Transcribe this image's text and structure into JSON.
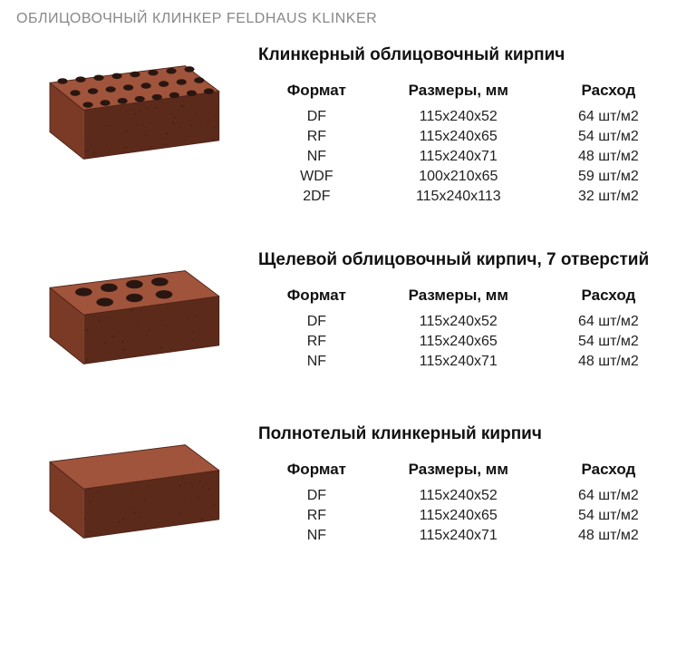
{
  "page_title": "ОБЛИЦОВОЧНЫЙ КЛИНКЕР FELDHAUS KLINKER",
  "table_headers": {
    "format": "Формат",
    "dimensions": "Размеры, мм",
    "consumption": "Расход"
  },
  "brick_visual": {
    "top_face": "#a0543c",
    "side_face": "#5c2a1b",
    "front_face": "#7a3a26",
    "hole_fill": "#2a1610",
    "shadow": "#4d2418",
    "speckle": "#3a2015"
  },
  "sections": [
    {
      "title": "Клинкерный облицовочный кирпич",
      "brick_type": "grid_holes",
      "rows": [
        {
          "format": "DF",
          "dimensions": "115x240x52",
          "consumption": "64 шт/м2"
        },
        {
          "format": "RF",
          "dimensions": "115x240x65",
          "consumption": "54 шт/м2"
        },
        {
          "format": "NF",
          "dimensions": "115x240x71",
          "consumption": "48 шт/м2"
        },
        {
          "format": "WDF",
          "dimensions": "100x210x65",
          "consumption": "59 шт/м2"
        },
        {
          "format": "2DF",
          "dimensions": "115x240x113",
          "consumption": "32 шт/м2"
        }
      ]
    },
    {
      "title": "Щелевой облицовочный кирпич, 7 отверстий",
      "brick_type": "seven_holes",
      "rows": [
        {
          "format": "DF",
          "dimensions": "115x240x52",
          "consumption": "64 шт/м2"
        },
        {
          "format": "RF",
          "dimensions": "115x240x65",
          "consumption": "54 шт/м2"
        },
        {
          "format": "NF",
          "dimensions": "115x240x71",
          "consumption": "48 шт/м2"
        }
      ]
    },
    {
      "title": "Полнотелый клинкерный кирпич",
      "brick_type": "solid",
      "rows": [
        {
          "format": "DF",
          "dimensions": "115x240x52",
          "consumption": "64 шт/м2"
        },
        {
          "format": "RF",
          "dimensions": "115x240x65",
          "consumption": "54 шт/м2"
        },
        {
          "format": "NF",
          "dimensions": "115x240x71",
          "consumption": "48 шт/м2"
        }
      ]
    }
  ]
}
